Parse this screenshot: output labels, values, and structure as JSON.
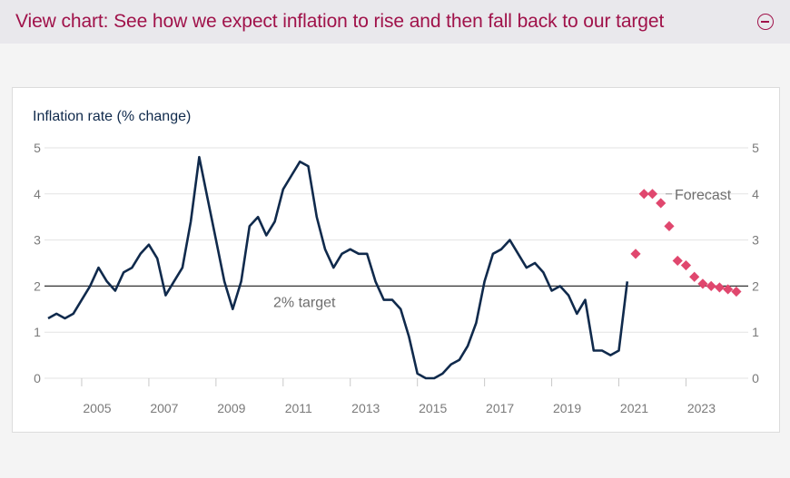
{
  "header": {
    "title": "View chart: See how we expect inflation to rise and then fall back to our target",
    "toggle_icon": "collapse-minus-icon"
  },
  "colors": {
    "accent": "#a0124a",
    "line": "#102a4c",
    "forecast": "#e0476e",
    "grid": "#e3e3e3",
    "target_line": "#333333"
  },
  "chart_data": {
    "type": "line",
    "title": "",
    "ylabel": "Inflation rate (% change)",
    "xlabel": "",
    "ylim": [
      0,
      5
    ],
    "xlim": [
      2004.0,
      2024.8
    ],
    "yticks": [
      "0",
      "1",
      "2",
      "3",
      "4",
      "5"
    ],
    "xticks": [
      "2005",
      "2007",
      "2009",
      "2011",
      "2013",
      "2015",
      "2017",
      "2019",
      "2021",
      "2023"
    ],
    "target": {
      "value": 2,
      "label": "2% target"
    },
    "forecast_label": "Forecast",
    "series": [
      {
        "name": "Inflation rate",
        "style": "line",
        "x": [
          2004.0,
          2004.25,
          2004.5,
          2004.75,
          2005.0,
          2005.25,
          2005.5,
          2005.75,
          2006.0,
          2006.25,
          2006.5,
          2006.75,
          2007.0,
          2007.25,
          2007.5,
          2007.75,
          2008.0,
          2008.25,
          2008.5,
          2008.75,
          2009.0,
          2009.25,
          2009.5,
          2009.75,
          2010.0,
          2010.25,
          2010.5,
          2010.75,
          2011.0,
          2011.25,
          2011.5,
          2011.75,
          2012.0,
          2012.25,
          2012.5,
          2012.75,
          2013.0,
          2013.25,
          2013.5,
          2013.75,
          2014.0,
          2014.25,
          2014.5,
          2014.75,
          2015.0,
          2015.25,
          2015.5,
          2015.75,
          2016.0,
          2016.25,
          2016.5,
          2016.75,
          2017.0,
          2017.25,
          2017.5,
          2017.75,
          2018.0,
          2018.25,
          2018.5,
          2018.75,
          2019.0,
          2019.25,
          2019.5,
          2019.75,
          2020.0,
          2020.25,
          2020.5,
          2020.75,
          2021.0,
          2021.25
        ],
        "y": [
          1.3,
          1.4,
          1.3,
          1.4,
          1.7,
          2.0,
          2.4,
          2.1,
          1.9,
          2.3,
          2.4,
          2.7,
          2.9,
          2.6,
          1.8,
          2.1,
          2.4,
          3.4,
          4.8,
          3.9,
          3.0,
          2.1,
          1.5,
          2.1,
          3.3,
          3.5,
          3.1,
          3.4,
          4.1,
          4.4,
          4.7,
          4.6,
          3.5,
          2.8,
          2.4,
          2.7,
          2.8,
          2.7,
          2.7,
          2.1,
          1.7,
          1.7,
          1.5,
          0.9,
          0.1,
          0.0,
          0.0,
          0.1,
          0.3,
          0.4,
          0.7,
          1.2,
          2.1,
          2.7,
          2.8,
          3.0,
          2.7,
          2.4,
          2.5,
          2.3,
          1.9,
          2.0,
          1.8,
          1.4,
          1.7,
          0.6,
          0.6,
          0.5,
          0.6,
          2.1
        ]
      },
      {
        "name": "Forecast",
        "style": "markers",
        "x": [
          2021.5,
          2021.75,
          2022.0,
          2022.25,
          2022.5,
          2022.75,
          2023.0,
          2023.25,
          2023.5,
          2023.75,
          2024.0,
          2024.25,
          2024.5
        ],
        "y": [
          2.7,
          4.0,
          4.0,
          3.8,
          3.3,
          2.55,
          2.45,
          2.2,
          2.05,
          2.0,
          1.97,
          1.93,
          1.88
        ]
      }
    ]
  }
}
